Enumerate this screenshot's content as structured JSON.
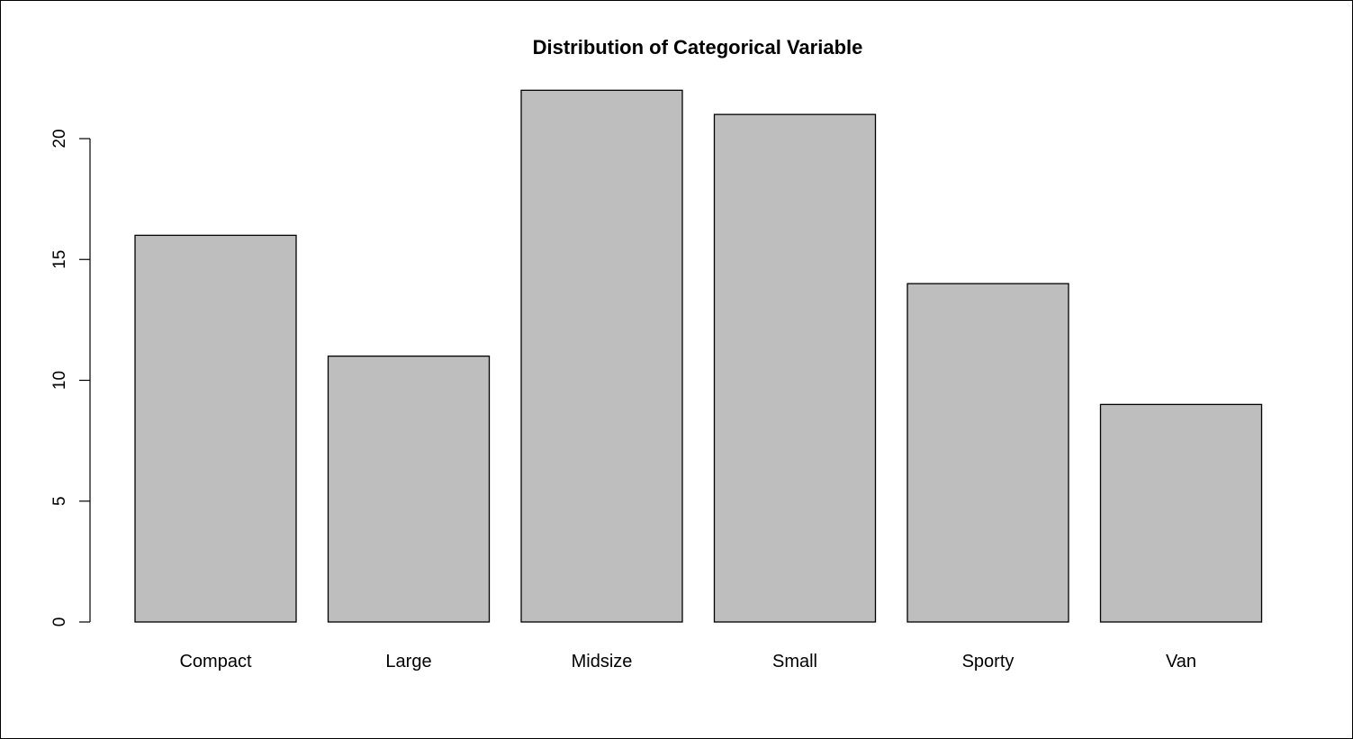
{
  "chart_data": {
    "type": "bar",
    "title": "Distribution of Categorical Variable",
    "xlabel": "",
    "ylabel": "",
    "categories": [
      "Compact",
      "Large",
      "Midsize",
      "Small",
      "Sporty",
      "Van"
    ],
    "values": [
      16,
      11,
      22,
      21,
      14,
      9
    ],
    "ylim": [
      0,
      22
    ],
    "yticks": [
      0,
      5,
      10,
      15,
      20
    ],
    "grid": false,
    "bar_fill": "#bebebe",
    "bar_stroke": "#000000"
  }
}
